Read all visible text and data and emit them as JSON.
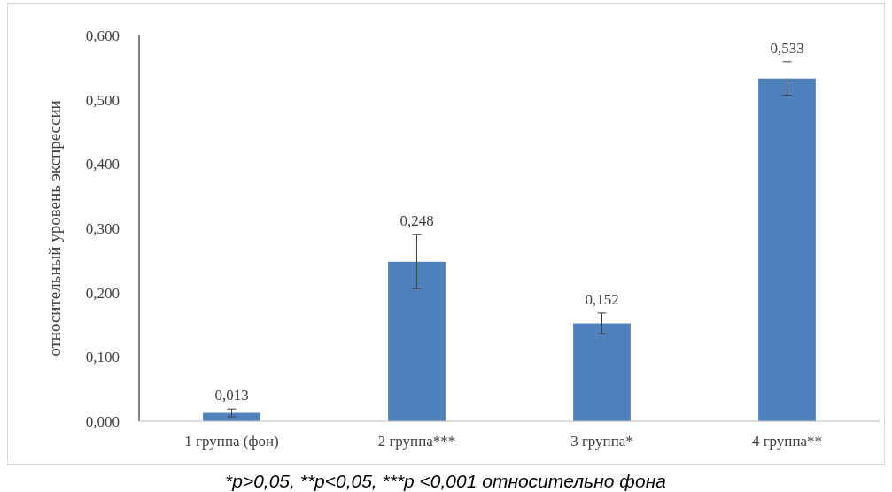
{
  "chart_data": {
    "type": "bar",
    "ylabel": "относительный уровень экспрессии",
    "categories": [
      "1 группа (фон)",
      "2 группа***",
      "3 группа*",
      "4 группа**"
    ],
    "values": [
      0.013,
      0.248,
      0.152,
      0.533
    ],
    "errors": [
      0.006,
      0.042,
      0.016,
      0.026
    ],
    "color": "#4f81bd",
    "value_labels": [
      "0,013",
      "0,248",
      "0,152",
      "0,533"
    ],
    "ylim": [
      0,
      0.6
    ],
    "yticks": [
      {
        "value": 0,
        "label": "0,000"
      },
      {
        "value": 0.1,
        "label": "0,100"
      },
      {
        "value": 0.2,
        "label": "0,200"
      },
      {
        "value": 0.3,
        "label": "0,300"
      },
      {
        "value": 0.4,
        "label": "0,400"
      },
      {
        "value": 0.5,
        "label": "0,500"
      },
      {
        "value": 0.6,
        "label": "0,600"
      }
    ],
    "grid": false,
    "annotations": [
      "*p>0,05, **p<0,05, ***p <0,001 относительно фона"
    ]
  }
}
